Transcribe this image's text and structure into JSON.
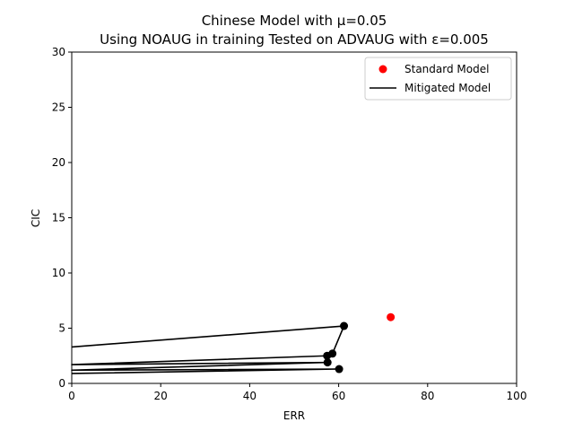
{
  "chart_data": {
    "type": "line",
    "title": "Chinese Model with μ=0.05",
    "subtitle": "Using NOAUG in training Tested on ADVAUG with ε=0.005",
    "xlabel": "ERR",
    "ylabel": "CIC",
    "xlim": [
      0,
      100
    ],
    "ylim": [
      0,
      30
    ],
    "xticks": [
      0,
      20,
      40,
      60,
      80,
      100
    ],
    "yticks": [
      0,
      5,
      10,
      15,
      20,
      25,
      30
    ],
    "grid": false,
    "legend_position": "top-right",
    "series": [
      {
        "name": "Standard Model",
        "kind": "scatter",
        "color": "#ff0000",
        "points": [
          [
            71.7,
            6.0
          ]
        ]
      },
      {
        "name": "Mitigated Model",
        "kind": "line",
        "color": "#000000",
        "points": [
          [
            0,
            3.3
          ],
          [
            61.2,
            5.2
          ],
          [
            58.6,
            2.7
          ],
          [
            57.4,
            2.5
          ],
          [
            0,
            1.7
          ],
          [
            57.5,
            1.9
          ],
          [
            0,
            1.2
          ],
          [
            60.1,
            1.3
          ],
          [
            0,
            0.9
          ]
        ],
        "markers": [
          [
            61.2,
            5.2
          ],
          [
            58.6,
            2.7
          ],
          [
            57.4,
            2.5
          ],
          [
            57.5,
            1.9
          ],
          [
            60.1,
            1.3
          ]
        ]
      }
    ]
  }
}
